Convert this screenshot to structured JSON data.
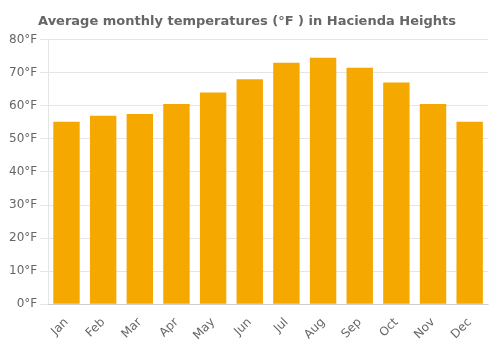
{
  "chart_data": {
    "type": "bar",
    "title": "Average monthly temperatures (°F ) in Hacienda Heights",
    "categories": [
      "Jan",
      "Feb",
      "Mar",
      "Apr",
      "May",
      "Jun",
      "Jul",
      "Aug",
      "Sep",
      "Oct",
      "Nov",
      "Dec"
    ],
    "values": [
      55.2,
      57.0,
      57.5,
      60.5,
      64.0,
      68.0,
      73.0,
      74.5,
      71.5,
      67.0,
      60.5,
      55.2
    ],
    "color": "#F5A800",
    "ylim": [
      0,
      80
    ],
    "yticks": [
      {
        "value": 0,
        "label": "0°F"
      },
      {
        "value": 10,
        "label": "10°F"
      },
      {
        "value": 20,
        "label": "20°F"
      },
      {
        "value": 30,
        "label": "30°F"
      },
      {
        "value": 40,
        "label": "40°F"
      },
      {
        "value": 50,
        "label": "50°F"
      },
      {
        "value": 60,
        "label": "60°F"
      },
      {
        "value": 70,
        "label": "70°F"
      },
      {
        "value": 80,
        "label": "80°F"
      }
    ],
    "grid": true
  }
}
